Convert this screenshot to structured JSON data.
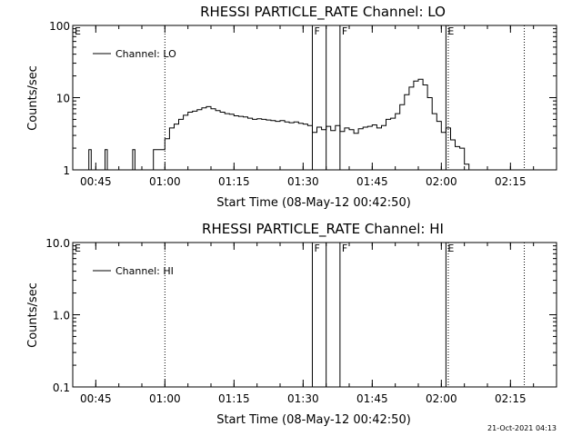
{
  "chart_data": [
    {
      "type": "line",
      "title": "RHESSI PARTICLE_RATE Channel: LO",
      "xlabel": "Start Time (08-May-12 00:42:50)",
      "ylabel": "Counts/sec",
      "yscale": "log",
      "ylim": [
        1,
        100
      ],
      "xlim": [
        "00:40",
        "02:25"
      ],
      "y_ticks": [
        "1",
        "10",
        "100"
      ],
      "x_ticks": [
        "00:45",
        "01:00",
        "01:15",
        "01:30",
        "01:45",
        "02:00",
        "02:15"
      ],
      "legend": {
        "label": "Channel: LO",
        "position": "top-left"
      },
      "markers": [
        {
          "time": "00:40",
          "style": "solid",
          "label": "E"
        },
        {
          "time": "01:00",
          "style": "dotted",
          "label": ""
        },
        {
          "time": "01:32",
          "style": "solid",
          "label": "F"
        },
        {
          "time": "01:35",
          "style": "solid",
          "label": ""
        },
        {
          "time": "01:38",
          "style": "solid",
          "label": "F"
        },
        {
          "time": "02:01",
          "style": "solid",
          "label": "E"
        },
        {
          "time": "02:01.5",
          "style": "dotted",
          "label": ""
        },
        {
          "time": "02:18",
          "style": "dotted",
          "label": ""
        }
      ],
      "series": [
        {
          "name": "Channel: LO",
          "x": [
            "00:42",
            "00:42.5",
            "00:43",
            "00:43.5",
            "00:44",
            "00:44.5",
            "00:45",
            "00:45.5",
            "00:46",
            "00:46.5",
            "00:47",
            "00:47.5",
            "00:48",
            "00:48.5",
            "00:49",
            "00:49.5",
            "00:50",
            "00:50.5",
            "00:51",
            "00:51.5",
            "00:52",
            "00:52.5",
            "00:53",
            "00:53.5",
            "00:54",
            "00:54.5",
            "00:55",
            "00:55.5",
            "00:56",
            "00:56.5",
            "00:57",
            "00:57.5",
            "00:58",
            "00:58.5",
            "00:59",
            "00:59.5",
            "01:00",
            "01:01",
            "01:02",
            "01:03",
            "01:04",
            "01:05",
            "01:06",
            "01:07",
            "01:08",
            "01:09",
            "01:10",
            "01:11",
            "01:12",
            "01:13",
            "01:14",
            "01:15",
            "01:16",
            "01:17",
            "01:18",
            "01:19",
            "01:20",
            "01:21",
            "01:22",
            "01:23",
            "01:24",
            "01:25",
            "01:26",
            "01:27",
            "01:28",
            "01:29",
            "01:30",
            "01:31",
            "01:32",
            "01:33",
            "01:34",
            "01:35",
            "01:36",
            "01:37",
            "01:38",
            "01:39",
            "01:40",
            "01:41",
            "01:42",
            "01:43",
            "01:44",
            "01:45",
            "01:46",
            "01:47",
            "01:48",
            "01:49",
            "01:50",
            "01:51",
            "01:52",
            "01:53",
            "01:54",
            "01:55",
            "01:56",
            "01:57",
            "01:58",
            "01:59",
            "02:00",
            "02:01",
            "02:02",
            "02:03",
            "02:04",
            "02:05",
            "02:06",
            "02:07"
          ],
          "values": [
            1,
            1,
            1,
            1.9,
            1,
            1,
            1,
            1,
            1,
            1,
            1.9,
            1,
            1,
            1,
            1,
            1,
            1,
            1,
            1,
            1,
            1,
            1,
            1.9,
            1,
            1,
            1,
            1,
            1,
            1,
            1,
            1,
            1.9,
            1.9,
            1.9,
            1.9,
            1.9,
            2.7,
            3.8,
            4.3,
            5,
            5.7,
            6.3,
            6.5,
            6.8,
            7.2,
            7.5,
            7,
            6.6,
            6.3,
            6,
            5.9,
            5.6,
            5.5,
            5.4,
            5.2,
            5,
            5.1,
            5,
            4.9,
            4.8,
            4.7,
            4.8,
            4.6,
            4.5,
            4.6,
            4.4,
            4.3,
            4.1,
            3.3,
            3.9,
            3.6,
            4,
            3.5,
            4.1,
            3.4,
            3.8,
            3.6,
            3.2,
            3.7,
            3.9,
            4,
            4.2,
            3.8,
            4.1,
            5,
            5.2,
            6,
            8,
            11,
            14,
            17,
            18,
            15,
            10,
            6,
            4.7,
            3.3,
            3.8,
            2.6,
            2.1,
            2,
            1.2,
            1,
            1
          ]
        }
      ]
    },
    {
      "type": "line",
      "title": "RHESSI PARTICLE_RATE Channel: HI",
      "xlabel": "Start Time (08-May-12 00:42:50)",
      "ylabel": "Counts/sec",
      "yscale": "log",
      "ylim": [
        0.1,
        10
      ],
      "xlim": [
        "00:40",
        "02:25"
      ],
      "y_ticks": [
        "0.1",
        "1.0",
        "10.0"
      ],
      "x_ticks": [
        "00:45",
        "01:00",
        "01:15",
        "01:30",
        "01:45",
        "02:00",
        "02:15"
      ],
      "legend": {
        "label": "Channel: HI",
        "position": "top-left"
      },
      "markers": [
        {
          "time": "00:40",
          "style": "solid",
          "label": "E"
        },
        {
          "time": "01:00",
          "style": "dotted",
          "label": ""
        },
        {
          "time": "01:32",
          "style": "solid",
          "label": "F"
        },
        {
          "time": "01:35",
          "style": "solid",
          "label": ""
        },
        {
          "time": "01:38",
          "style": "solid",
          "label": "F"
        },
        {
          "time": "02:01",
          "style": "solid",
          "label": "E"
        },
        {
          "time": "02:01.5",
          "style": "dotted",
          "label": ""
        },
        {
          "time": "02:18",
          "style": "dotted",
          "label": ""
        }
      ],
      "series": [
        {
          "name": "Channel: HI",
          "x": [],
          "values": []
        }
      ]
    }
  ],
  "footer": {
    "timestamp": "21-Oct-2021 04:13"
  }
}
